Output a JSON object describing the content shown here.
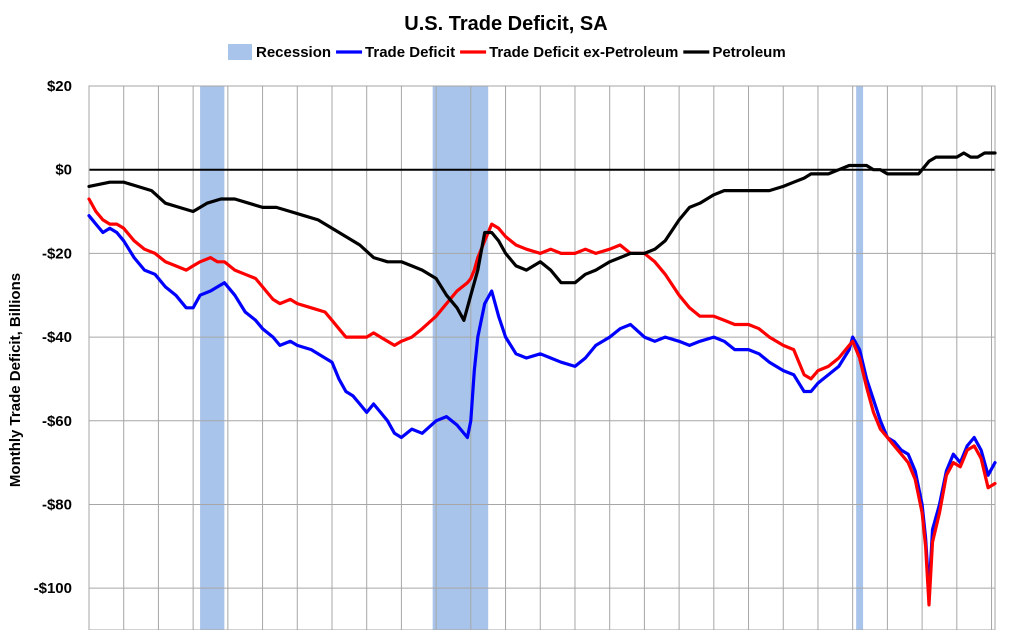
{
  "chart_data": {
    "type": "line",
    "title": "U.S. Trade Deficit, SA",
    "xlabel": "",
    "ylabel": "Monthly Trade Deficit, Billions",
    "ylim": [
      -110,
      20
    ],
    "y_ticks": [
      {
        "value": 20,
        "label": "$20"
      },
      {
        "value": 0,
        "label": "$0"
      },
      {
        "value": -20,
        "label": "-$20"
      },
      {
        "value": -40,
        "label": "-$40"
      },
      {
        "value": -60,
        "label": "-$60"
      },
      {
        "value": -80,
        "label": "-$80"
      },
      {
        "value": -100,
        "label": "-$100"
      }
    ],
    "xlim": [
      1998,
      2024.1
    ],
    "grid": true,
    "legend_position": "top-center",
    "legend": [
      {
        "label": "Recession",
        "kind": "patch",
        "color": "#a9c4eb"
      },
      {
        "label": "Trade Deficit",
        "kind": "line",
        "color": "#0000ff"
      },
      {
        "label": "Trade Deficit ex-Petroleum",
        "kind": "line",
        "color": "#ff0000"
      },
      {
        "label": "Petroleum",
        "kind": "line",
        "color": "#000000"
      }
    ],
    "recessions": [
      {
        "start": 2001.2,
        "end": 2001.9
      },
      {
        "start": 2007.9,
        "end": 2009.5
      },
      {
        "start": 2020.1,
        "end": 2020.3
      }
    ],
    "series": [
      {
        "name": "Trade Deficit",
        "color": "#0000ff",
        "points": [
          [
            1998.0,
            -11
          ],
          [
            1998.2,
            -13
          ],
          [
            1998.4,
            -15
          ],
          [
            1998.6,
            -14
          ],
          [
            1998.8,
            -15
          ],
          [
            1999.0,
            -17
          ],
          [
            1999.3,
            -21
          ],
          [
            1999.6,
            -24
          ],
          [
            1999.9,
            -25
          ],
          [
            2000.2,
            -28
          ],
          [
            2000.5,
            -30
          ],
          [
            2000.8,
            -33
          ],
          [
            2001.0,
            -33
          ],
          [
            2001.2,
            -30
          ],
          [
            2001.5,
            -29
          ],
          [
            2001.7,
            -28
          ],
          [
            2001.9,
            -27
          ],
          [
            2002.2,
            -30
          ],
          [
            2002.5,
            -34
          ],
          [
            2002.8,
            -36
          ],
          [
            2003.0,
            -38
          ],
          [
            2003.3,
            -40
          ],
          [
            2003.5,
            -42
          ],
          [
            2003.8,
            -41
          ],
          [
            2004.0,
            -42
          ],
          [
            2004.4,
            -43
          ],
          [
            2004.8,
            -45
          ],
          [
            2005.0,
            -46
          ],
          [
            2005.2,
            -50
          ],
          [
            2005.4,
            -53
          ],
          [
            2005.6,
            -54
          ],
          [
            2005.8,
            -56
          ],
          [
            2006.0,
            -58
          ],
          [
            2006.2,
            -56
          ],
          [
            2006.4,
            -58
          ],
          [
            2006.6,
            -60
          ],
          [
            2006.8,
            -63
          ],
          [
            2007.0,
            -64
          ],
          [
            2007.3,
            -62
          ],
          [
            2007.6,
            -63
          ],
          [
            2008.0,
            -60
          ],
          [
            2008.3,
            -59
          ],
          [
            2008.6,
            -61
          ],
          [
            2008.9,
            -64
          ],
          [
            2009.0,
            -60
          ],
          [
            2009.1,
            -48
          ],
          [
            2009.2,
            -40
          ],
          [
            2009.4,
            -32
          ],
          [
            2009.6,
            -29
          ],
          [
            2009.8,
            -35
          ],
          [
            2010.0,
            -40
          ],
          [
            2010.3,
            -44
          ],
          [
            2010.6,
            -45
          ],
          [
            2011.0,
            -44
          ],
          [
            2011.3,
            -45
          ],
          [
            2011.6,
            -46
          ],
          [
            2012.0,
            -47
          ],
          [
            2012.3,
            -45
          ],
          [
            2012.6,
            -42
          ],
          [
            2013.0,
            -40
          ],
          [
            2013.3,
            -38
          ],
          [
            2013.6,
            -37
          ],
          [
            2014.0,
            -40
          ],
          [
            2014.3,
            -41
          ],
          [
            2014.6,
            -40
          ],
          [
            2015.0,
            -41
          ],
          [
            2015.3,
            -42
          ],
          [
            2015.6,
            -41
          ],
          [
            2016.0,
            -40
          ],
          [
            2016.3,
            -41
          ],
          [
            2016.6,
            -43
          ],
          [
            2017.0,
            -43
          ],
          [
            2017.3,
            -44
          ],
          [
            2017.6,
            -46
          ],
          [
            2018.0,
            -48
          ],
          [
            2018.3,
            -49
          ],
          [
            2018.6,
            -53
          ],
          [
            2018.8,
            -53
          ],
          [
            2019.0,
            -51
          ],
          [
            2019.3,
            -49
          ],
          [
            2019.6,
            -47
          ],
          [
            2019.9,
            -43
          ],
          [
            2020.0,
            -40
          ],
          [
            2020.2,
            -43
          ],
          [
            2020.4,
            -50
          ],
          [
            2020.6,
            -55
          ],
          [
            2020.8,
            -60
          ],
          [
            2021.0,
            -64
          ],
          [
            2021.2,
            -65
          ],
          [
            2021.4,
            -67
          ],
          [
            2021.6,
            -68
          ],
          [
            2021.8,
            -72
          ],
          [
            2022.0,
            -80
          ],
          [
            2022.1,
            -88
          ],
          [
            2022.2,
            -101
          ],
          [
            2022.3,
            -86
          ],
          [
            2022.5,
            -80
          ],
          [
            2022.7,
            -72
          ],
          [
            2022.9,
            -68
          ],
          [
            2023.1,
            -70
          ],
          [
            2023.3,
            -66
          ],
          [
            2023.5,
            -64
          ],
          [
            2023.7,
            -67
          ],
          [
            2023.9,
            -73
          ],
          [
            2024.1,
            -70
          ]
        ]
      },
      {
        "name": "Trade Deficit ex-Petroleum",
        "color": "#ff0000",
        "points": [
          [
            1998.0,
            -7
          ],
          [
            1998.2,
            -10
          ],
          [
            1998.4,
            -12
          ],
          [
            1998.6,
            -13
          ],
          [
            1998.8,
            -13
          ],
          [
            1999.0,
            -14
          ],
          [
            1999.3,
            -17
          ],
          [
            1999.6,
            -19
          ],
          [
            1999.9,
            -20
          ],
          [
            2000.2,
            -22
          ],
          [
            2000.5,
            -23
          ],
          [
            2000.8,
            -24
          ],
          [
            2001.0,
            -23
          ],
          [
            2001.2,
            -22
          ],
          [
            2001.5,
            -21
          ],
          [
            2001.7,
            -22
          ],
          [
            2001.9,
            -22
          ],
          [
            2002.2,
            -24
          ],
          [
            2002.5,
            -25
          ],
          [
            2002.8,
            -26
          ],
          [
            2003.0,
            -28
          ],
          [
            2003.3,
            -31
          ],
          [
            2003.5,
            -32
          ],
          [
            2003.8,
            -31
          ],
          [
            2004.0,
            -32
          ],
          [
            2004.4,
            -33
          ],
          [
            2004.8,
            -34
          ],
          [
            2005.0,
            -36
          ],
          [
            2005.2,
            -38
          ],
          [
            2005.4,
            -40
          ],
          [
            2005.6,
            -40
          ],
          [
            2005.8,
            -40
          ],
          [
            2006.0,
            -40
          ],
          [
            2006.2,
            -39
          ],
          [
            2006.4,
            -40
          ],
          [
            2006.6,
            -41
          ],
          [
            2006.8,
            -42
          ],
          [
            2007.0,
            -41
          ],
          [
            2007.3,
            -40
          ],
          [
            2007.6,
            -38
          ],
          [
            2008.0,
            -35
          ],
          [
            2008.3,
            -32
          ],
          [
            2008.6,
            -29
          ],
          [
            2008.9,
            -27
          ],
          [
            2009.0,
            -26
          ],
          [
            2009.1,
            -24
          ],
          [
            2009.2,
            -21
          ],
          [
            2009.4,
            -17
          ],
          [
            2009.6,
            -13
          ],
          [
            2009.8,
            -14
          ],
          [
            2010.0,
            -16
          ],
          [
            2010.3,
            -18
          ],
          [
            2010.6,
            -19
          ],
          [
            2011.0,
            -20
          ],
          [
            2011.3,
            -19
          ],
          [
            2011.6,
            -20
          ],
          [
            2012.0,
            -20
          ],
          [
            2012.3,
            -19
          ],
          [
            2012.6,
            -20
          ],
          [
            2013.0,
            -19
          ],
          [
            2013.3,
            -18
          ],
          [
            2013.6,
            -20
          ],
          [
            2014.0,
            -20
          ],
          [
            2014.3,
            -22
          ],
          [
            2014.6,
            -25
          ],
          [
            2015.0,
            -30
          ],
          [
            2015.3,
            -33
          ],
          [
            2015.6,
            -35
          ],
          [
            2016.0,
            -35
          ],
          [
            2016.3,
            -36
          ],
          [
            2016.6,
            -37
          ],
          [
            2017.0,
            -37
          ],
          [
            2017.3,
            -38
          ],
          [
            2017.6,
            -40
          ],
          [
            2018.0,
            -42
          ],
          [
            2018.3,
            -43
          ],
          [
            2018.6,
            -49
          ],
          [
            2018.8,
            -50
          ],
          [
            2019.0,
            -48
          ],
          [
            2019.3,
            -47
          ],
          [
            2019.6,
            -45
          ],
          [
            2019.9,
            -42
          ],
          [
            2020.0,
            -41
          ],
          [
            2020.2,
            -45
          ],
          [
            2020.4,
            -52
          ],
          [
            2020.6,
            -58
          ],
          [
            2020.8,
            -62
          ],
          [
            2021.0,
            -64
          ],
          [
            2021.2,
            -66
          ],
          [
            2021.4,
            -68
          ],
          [
            2021.6,
            -70
          ],
          [
            2021.8,
            -74
          ],
          [
            2022.0,
            -82
          ],
          [
            2022.1,
            -90
          ],
          [
            2022.2,
            -104
          ],
          [
            2022.3,
            -89
          ],
          [
            2022.5,
            -82
          ],
          [
            2022.7,
            -73
          ],
          [
            2022.9,
            -70
          ],
          [
            2023.1,
            -71
          ],
          [
            2023.3,
            -67
          ],
          [
            2023.5,
            -66
          ],
          [
            2023.7,
            -69
          ],
          [
            2023.9,
            -76
          ],
          [
            2024.1,
            -75
          ]
        ]
      },
      {
        "name": "Petroleum",
        "color": "#000000",
        "points": [
          [
            1998.0,
            -4
          ],
          [
            1998.3,
            -3.5
          ],
          [
            1998.6,
            -3
          ],
          [
            1999.0,
            -3
          ],
          [
            1999.4,
            -4
          ],
          [
            1999.8,
            -5
          ],
          [
            2000.2,
            -8
          ],
          [
            2000.6,
            -9
          ],
          [
            2001.0,
            -10
          ],
          [
            2001.4,
            -8
          ],
          [
            2001.8,
            -7
          ],
          [
            2002.2,
            -7
          ],
          [
            2002.6,
            -8
          ],
          [
            2003.0,
            -9
          ],
          [
            2003.4,
            -9
          ],
          [
            2003.8,
            -10
          ],
          [
            2004.2,
            -11
          ],
          [
            2004.6,
            -12
          ],
          [
            2005.0,
            -14
          ],
          [
            2005.4,
            -16
          ],
          [
            2005.8,
            -18
          ],
          [
            2006.2,
            -21
          ],
          [
            2006.6,
            -22
          ],
          [
            2007.0,
            -22
          ],
          [
            2007.3,
            -23
          ],
          [
            2007.6,
            -24
          ],
          [
            2008.0,
            -26
          ],
          [
            2008.3,
            -30
          ],
          [
            2008.6,
            -33
          ],
          [
            2008.8,
            -36
          ],
          [
            2009.0,
            -30
          ],
          [
            2009.2,
            -24
          ],
          [
            2009.4,
            -15
          ],
          [
            2009.6,
            -15
          ],
          [
            2009.8,
            -17
          ],
          [
            2010.0,
            -20
          ],
          [
            2010.3,
            -23
          ],
          [
            2010.6,
            -24
          ],
          [
            2011.0,
            -22
          ],
          [
            2011.3,
            -24
          ],
          [
            2011.6,
            -27
          ],
          [
            2012.0,
            -27
          ],
          [
            2012.3,
            -25
          ],
          [
            2012.6,
            -24
          ],
          [
            2013.0,
            -22
          ],
          [
            2013.3,
            -21
          ],
          [
            2013.6,
            -20
          ],
          [
            2014.0,
            -20
          ],
          [
            2014.3,
            -19
          ],
          [
            2014.6,
            -17
          ],
          [
            2015.0,
            -12
          ],
          [
            2015.3,
            -9
          ],
          [
            2015.6,
            -8
          ],
          [
            2016.0,
            -6
          ],
          [
            2016.3,
            -5
          ],
          [
            2016.6,
            -5
          ],
          [
            2017.0,
            -5
          ],
          [
            2017.3,
            -5
          ],
          [
            2017.6,
            -5
          ],
          [
            2018.0,
            -4
          ],
          [
            2018.3,
            -3
          ],
          [
            2018.6,
            -2
          ],
          [
            2018.8,
            -1
          ],
          [
            2019.0,
            -1
          ],
          [
            2019.3,
            -1
          ],
          [
            2019.6,
            0
          ],
          [
            2019.9,
            1
          ],
          [
            2020.0,
            1
          ],
          [
            2020.2,
            1
          ],
          [
            2020.4,
            1
          ],
          [
            2020.6,
            0
          ],
          [
            2020.8,
            0
          ],
          [
            2021.0,
            -1
          ],
          [
            2021.3,
            -1
          ],
          [
            2021.6,
            -1
          ],
          [
            2021.9,
            -1
          ],
          [
            2022.2,
            2
          ],
          [
            2022.4,
            3
          ],
          [
            2022.6,
            3
          ],
          [
            2022.8,
            3
          ],
          [
            2023.0,
            3
          ],
          [
            2023.2,
            4
          ],
          [
            2023.4,
            3
          ],
          [
            2023.6,
            3
          ],
          [
            2023.8,
            4
          ],
          [
            2024.0,
            4
          ],
          [
            2024.1,
            4
          ]
        ]
      }
    ]
  }
}
